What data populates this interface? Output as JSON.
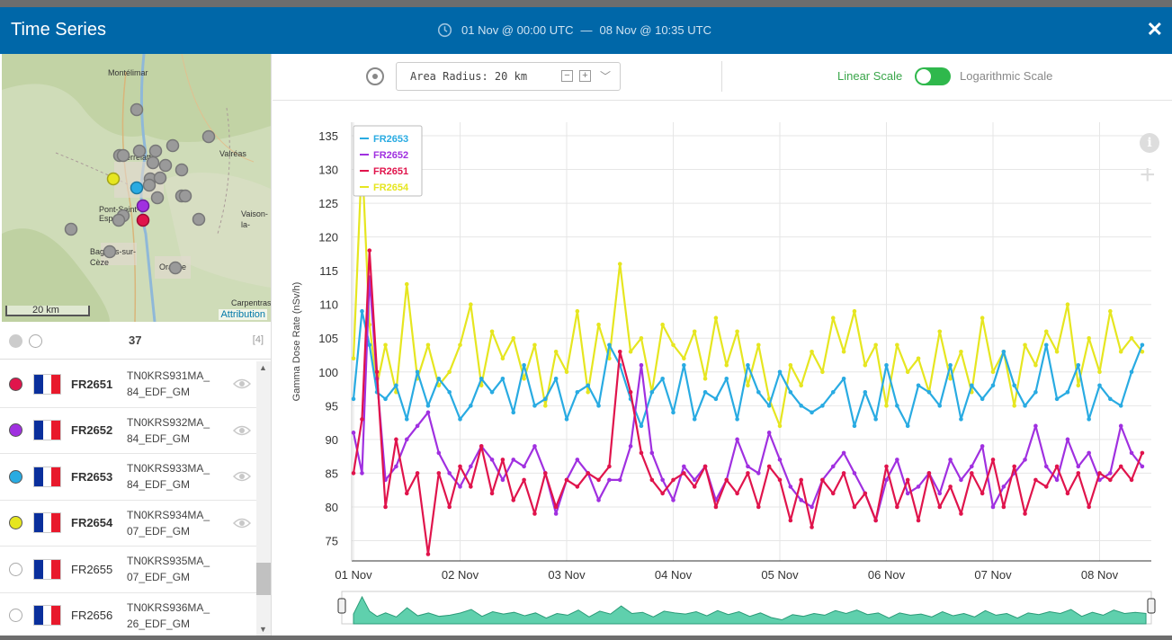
{
  "window": {
    "title": "Time Series",
    "range_start": "01 Nov @ 00:00 UTC",
    "range_sep": "—",
    "range_end": "08 Nov @ 10:35 UTC",
    "close_label": "✕"
  },
  "map": {
    "scale_label": "20 km",
    "attribution": "Attribution",
    "labels": [
      "Montélimar",
      "Valréas",
      "Pierrelatte",
      "Pont-Saint-Esprit",
      "Vaison-la-Romaine",
      "Bagnols-sur-Cèze",
      "Orange",
      "Carpentras"
    ]
  },
  "list_header": {
    "count": "37",
    "bracket": "[4]"
  },
  "stations": [
    {
      "id": "FR2651",
      "code_line1": "TN0KRS931MA_",
      "code_line2": "84_EDF_GM",
      "color": "#e0144c",
      "selected": true
    },
    {
      "id": "FR2652",
      "code_line1": "TN0KRS932MA_",
      "code_line2": "84_EDF_GM",
      "color": "#a030e0",
      "selected": true
    },
    {
      "id": "FR2653",
      "code_line1": "TN0KRS933MA_",
      "code_line2": "84_EDF_GM",
      "color": "#29abe2",
      "selected": true
    },
    {
      "id": "FR2654",
      "code_line1": "TN0KRS934MA_",
      "code_line2": "07_EDF_GM",
      "color": "#e6e620",
      "selected": true
    },
    {
      "id": "FR2655",
      "code_line1": "TN0KRS935MA_",
      "code_line2": "07_EDF_GM",
      "color": "",
      "selected": false
    },
    {
      "id": "FR2656",
      "code_line1": "TN0KRS936MA_",
      "code_line2": "26_EDF_GM",
      "color": "",
      "selected": false
    }
  ],
  "toolbar": {
    "radius_label": "Area Radius: 20 km",
    "linear_label": "Linear Scale",
    "log_label": "Logarithmic Scale",
    "scale_mode": "linear"
  },
  "chart_data": {
    "type": "line",
    "ylabel": "Gamma Dose Rate (nSv/h)",
    "xlabel": "",
    "ylim": [
      72,
      137
    ],
    "yticks": [
      75,
      80,
      85,
      90,
      95,
      100,
      105,
      110,
      115,
      120,
      125,
      130,
      135
    ],
    "xlim": [
      0,
      7.45
    ],
    "xticks": [
      {
        "x": 0,
        "label": "01 Nov"
      },
      {
        "x": 1,
        "label": "02 Nov"
      },
      {
        "x": 2,
        "label": "03 Nov"
      },
      {
        "x": 3,
        "label": "04 Nov"
      },
      {
        "x": 4,
        "label": "05 Nov"
      },
      {
        "x": 5,
        "label": "06 Nov"
      },
      {
        "x": 6,
        "label": "07 Nov"
      },
      {
        "x": 7,
        "label": "08 Nov"
      }
    ],
    "x_unit": "days since 01 Nov 00:00 UTC",
    "grid": true,
    "legend_position": "top-left",
    "series": [
      {
        "name": "FR2653",
        "color": "#29abe2",
        "x": [
          0,
          0.08,
          0.15,
          0.22,
          0.3,
          0.4,
          0.5,
          0.6,
          0.7,
          0.8,
          0.9,
          1.0,
          1.1,
          1.2,
          1.3,
          1.4,
          1.5,
          1.6,
          1.7,
          1.8,
          1.9,
          2.0,
          2.1,
          2.2,
          2.3,
          2.4,
          2.5,
          2.6,
          2.7,
          2.8,
          2.9,
          3.0,
          3.1,
          3.2,
          3.3,
          3.4,
          3.5,
          3.6,
          3.7,
          3.8,
          3.9,
          4.0,
          4.1,
          4.2,
          4.3,
          4.4,
          4.5,
          4.6,
          4.7,
          4.8,
          4.9,
          5.0,
          5.1,
          5.2,
          5.3,
          5.4,
          5.5,
          5.6,
          5.7,
          5.8,
          5.9,
          6.0,
          6.1,
          6.2,
          6.3,
          6.4,
          6.5,
          6.6,
          6.7,
          6.8,
          6.9,
          7.0,
          7.1,
          7.2,
          7.3,
          7.4
        ],
        "values": [
          96,
          109,
          104,
          97,
          96,
          98,
          93,
          100,
          95,
          99,
          97,
          93,
          95,
          99,
          97,
          99,
          94,
          101,
          95,
          96,
          99,
          93,
          97,
          98,
          95,
          104,
          101,
          96,
          92,
          97,
          99,
          94,
          101,
          93,
          97,
          96,
          99,
          93,
          101,
          97,
          95,
          100,
          97,
          95,
          94,
          95,
          97,
          99,
          92,
          97,
          93,
          101,
          95,
          92,
          98,
          97,
          95,
          101,
          93,
          98,
          96,
          98,
          103,
          98,
          95,
          97,
          104,
          96,
          97,
          101,
          93,
          98,
          96,
          95,
          100,
          104
        ]
      },
      {
        "name": "FR2652",
        "color": "#a030e0",
        "x": [
          0,
          0.08,
          0.15,
          0.22,
          0.3,
          0.4,
          0.5,
          0.6,
          0.7,
          0.8,
          0.9,
          1.0,
          1.1,
          1.2,
          1.3,
          1.4,
          1.5,
          1.6,
          1.7,
          1.8,
          1.9,
          2.0,
          2.1,
          2.2,
          2.3,
          2.4,
          2.5,
          2.6,
          2.7,
          2.8,
          2.9,
          3.0,
          3.1,
          3.2,
          3.3,
          3.4,
          3.5,
          3.6,
          3.7,
          3.8,
          3.9,
          4.0,
          4.1,
          4.2,
          4.3,
          4.4,
          4.5,
          4.6,
          4.7,
          4.8,
          4.9,
          5.0,
          5.1,
          5.2,
          5.3,
          5.4,
          5.5,
          5.6,
          5.7,
          5.8,
          5.9,
          6.0,
          6.1,
          6.2,
          6.3,
          6.4,
          6.5,
          6.6,
          6.7,
          6.8,
          6.9,
          7.0,
          7.1,
          7.2,
          7.3,
          7.4
        ],
        "values": [
          91,
          85,
          114,
          99,
          84,
          86,
          90,
          92,
          94,
          88,
          85,
          83,
          86,
          89,
          87,
          84,
          87,
          86,
          89,
          85,
          79,
          84,
          87,
          85,
          81,
          84,
          84,
          89,
          101,
          88,
          84,
          81,
          86,
          84,
          86,
          81,
          84,
          90,
          86,
          85,
          91,
          87,
          83,
          81,
          80,
          84,
          86,
          88,
          85,
          82,
          78,
          84,
          87,
          82,
          83,
          85,
          82,
          87,
          84,
          86,
          89,
          80,
          83,
          85,
          87,
          92,
          86,
          84,
          90,
          86,
          88,
          84,
          85,
          92,
          88,
          86
        ]
      },
      {
        "name": "FR2651",
        "color": "#e0144c",
        "x": [
          0,
          0.08,
          0.15,
          0.22,
          0.3,
          0.4,
          0.5,
          0.6,
          0.7,
          0.8,
          0.9,
          1.0,
          1.1,
          1.2,
          1.3,
          1.4,
          1.5,
          1.6,
          1.7,
          1.8,
          1.9,
          2.0,
          2.1,
          2.2,
          2.3,
          2.4,
          2.5,
          2.6,
          2.7,
          2.8,
          2.9,
          3.0,
          3.1,
          3.2,
          3.3,
          3.4,
          3.5,
          3.6,
          3.7,
          3.8,
          3.9,
          4.0,
          4.1,
          4.2,
          4.3,
          4.4,
          4.5,
          4.6,
          4.7,
          4.8,
          4.9,
          5.0,
          5.1,
          5.2,
          5.3,
          5.4,
          5.5,
          5.6,
          5.7,
          5.8,
          5.9,
          6.0,
          6.1,
          6.2,
          6.3,
          6.4,
          6.5,
          6.6,
          6.7,
          6.8,
          6.9,
          7.0,
          7.1,
          7.2,
          7.3,
          7.4
        ],
        "values": [
          85,
          93,
          118,
          100,
          80,
          90,
          82,
          85,
          73,
          85,
          80,
          86,
          83,
          89,
          82,
          87,
          81,
          84,
          79,
          85,
          80,
          84,
          83,
          85,
          84,
          86,
          103,
          97,
          88,
          84,
          82,
          84,
          85,
          83,
          86,
          80,
          84,
          82,
          85,
          80,
          86,
          84,
          78,
          84,
          77,
          84,
          82,
          85,
          80,
          82,
          78,
          86,
          80,
          84,
          78,
          85,
          80,
          83,
          79,
          85,
          82,
          87,
          80,
          86,
          79,
          84,
          83,
          86,
          82,
          85,
          80,
          85,
          84,
          86,
          84,
          88
        ]
      },
      {
        "name": "FR2654",
        "color": "#e6e620",
        "x": [
          0,
          0.08,
          0.15,
          0.22,
          0.3,
          0.4,
          0.5,
          0.6,
          0.7,
          0.8,
          0.9,
          1.0,
          1.1,
          1.2,
          1.3,
          1.4,
          1.5,
          1.6,
          1.7,
          1.8,
          1.9,
          2.0,
          2.1,
          2.2,
          2.3,
          2.4,
          2.5,
          2.6,
          2.7,
          2.8,
          2.9,
          3.0,
          3.1,
          3.2,
          3.3,
          3.4,
          3.5,
          3.6,
          3.7,
          3.8,
          3.9,
          4.0,
          4.1,
          4.2,
          4.3,
          4.4,
          4.5,
          4.6,
          4.7,
          4.8,
          4.9,
          5.0,
          5.1,
          5.2,
          5.3,
          5.4,
          5.5,
          5.6,
          5.7,
          5.8,
          5.9,
          6.0,
          6.1,
          6.2,
          6.3,
          6.4,
          6.5,
          6.6,
          6.7,
          6.8,
          6.9,
          7.0,
          7.1,
          7.2,
          7.3,
          7.4
        ],
        "values": [
          102,
          132,
          107,
          98,
          104,
          97,
          113,
          99,
          104,
          98,
          100,
          104,
          110,
          98,
          106,
          102,
          105,
          99,
          104,
          95,
          103,
          100,
          109,
          97,
          107,
          102,
          116,
          103,
          105,
          97,
          107,
          104,
          102,
          106,
          99,
          108,
          101,
          106,
          98,
          104,
          96,
          92,
          101,
          98,
          103,
          100,
          108,
          103,
          109,
          101,
          104,
          95,
          104,
          100,
          102,
          97,
          106,
          99,
          103,
          97,
          108,
          100,
          103,
          95,
          104,
          101,
          106,
          103,
          110,
          98,
          105,
          100,
          109,
          103,
          105,
          103
        ]
      }
    ]
  }
}
